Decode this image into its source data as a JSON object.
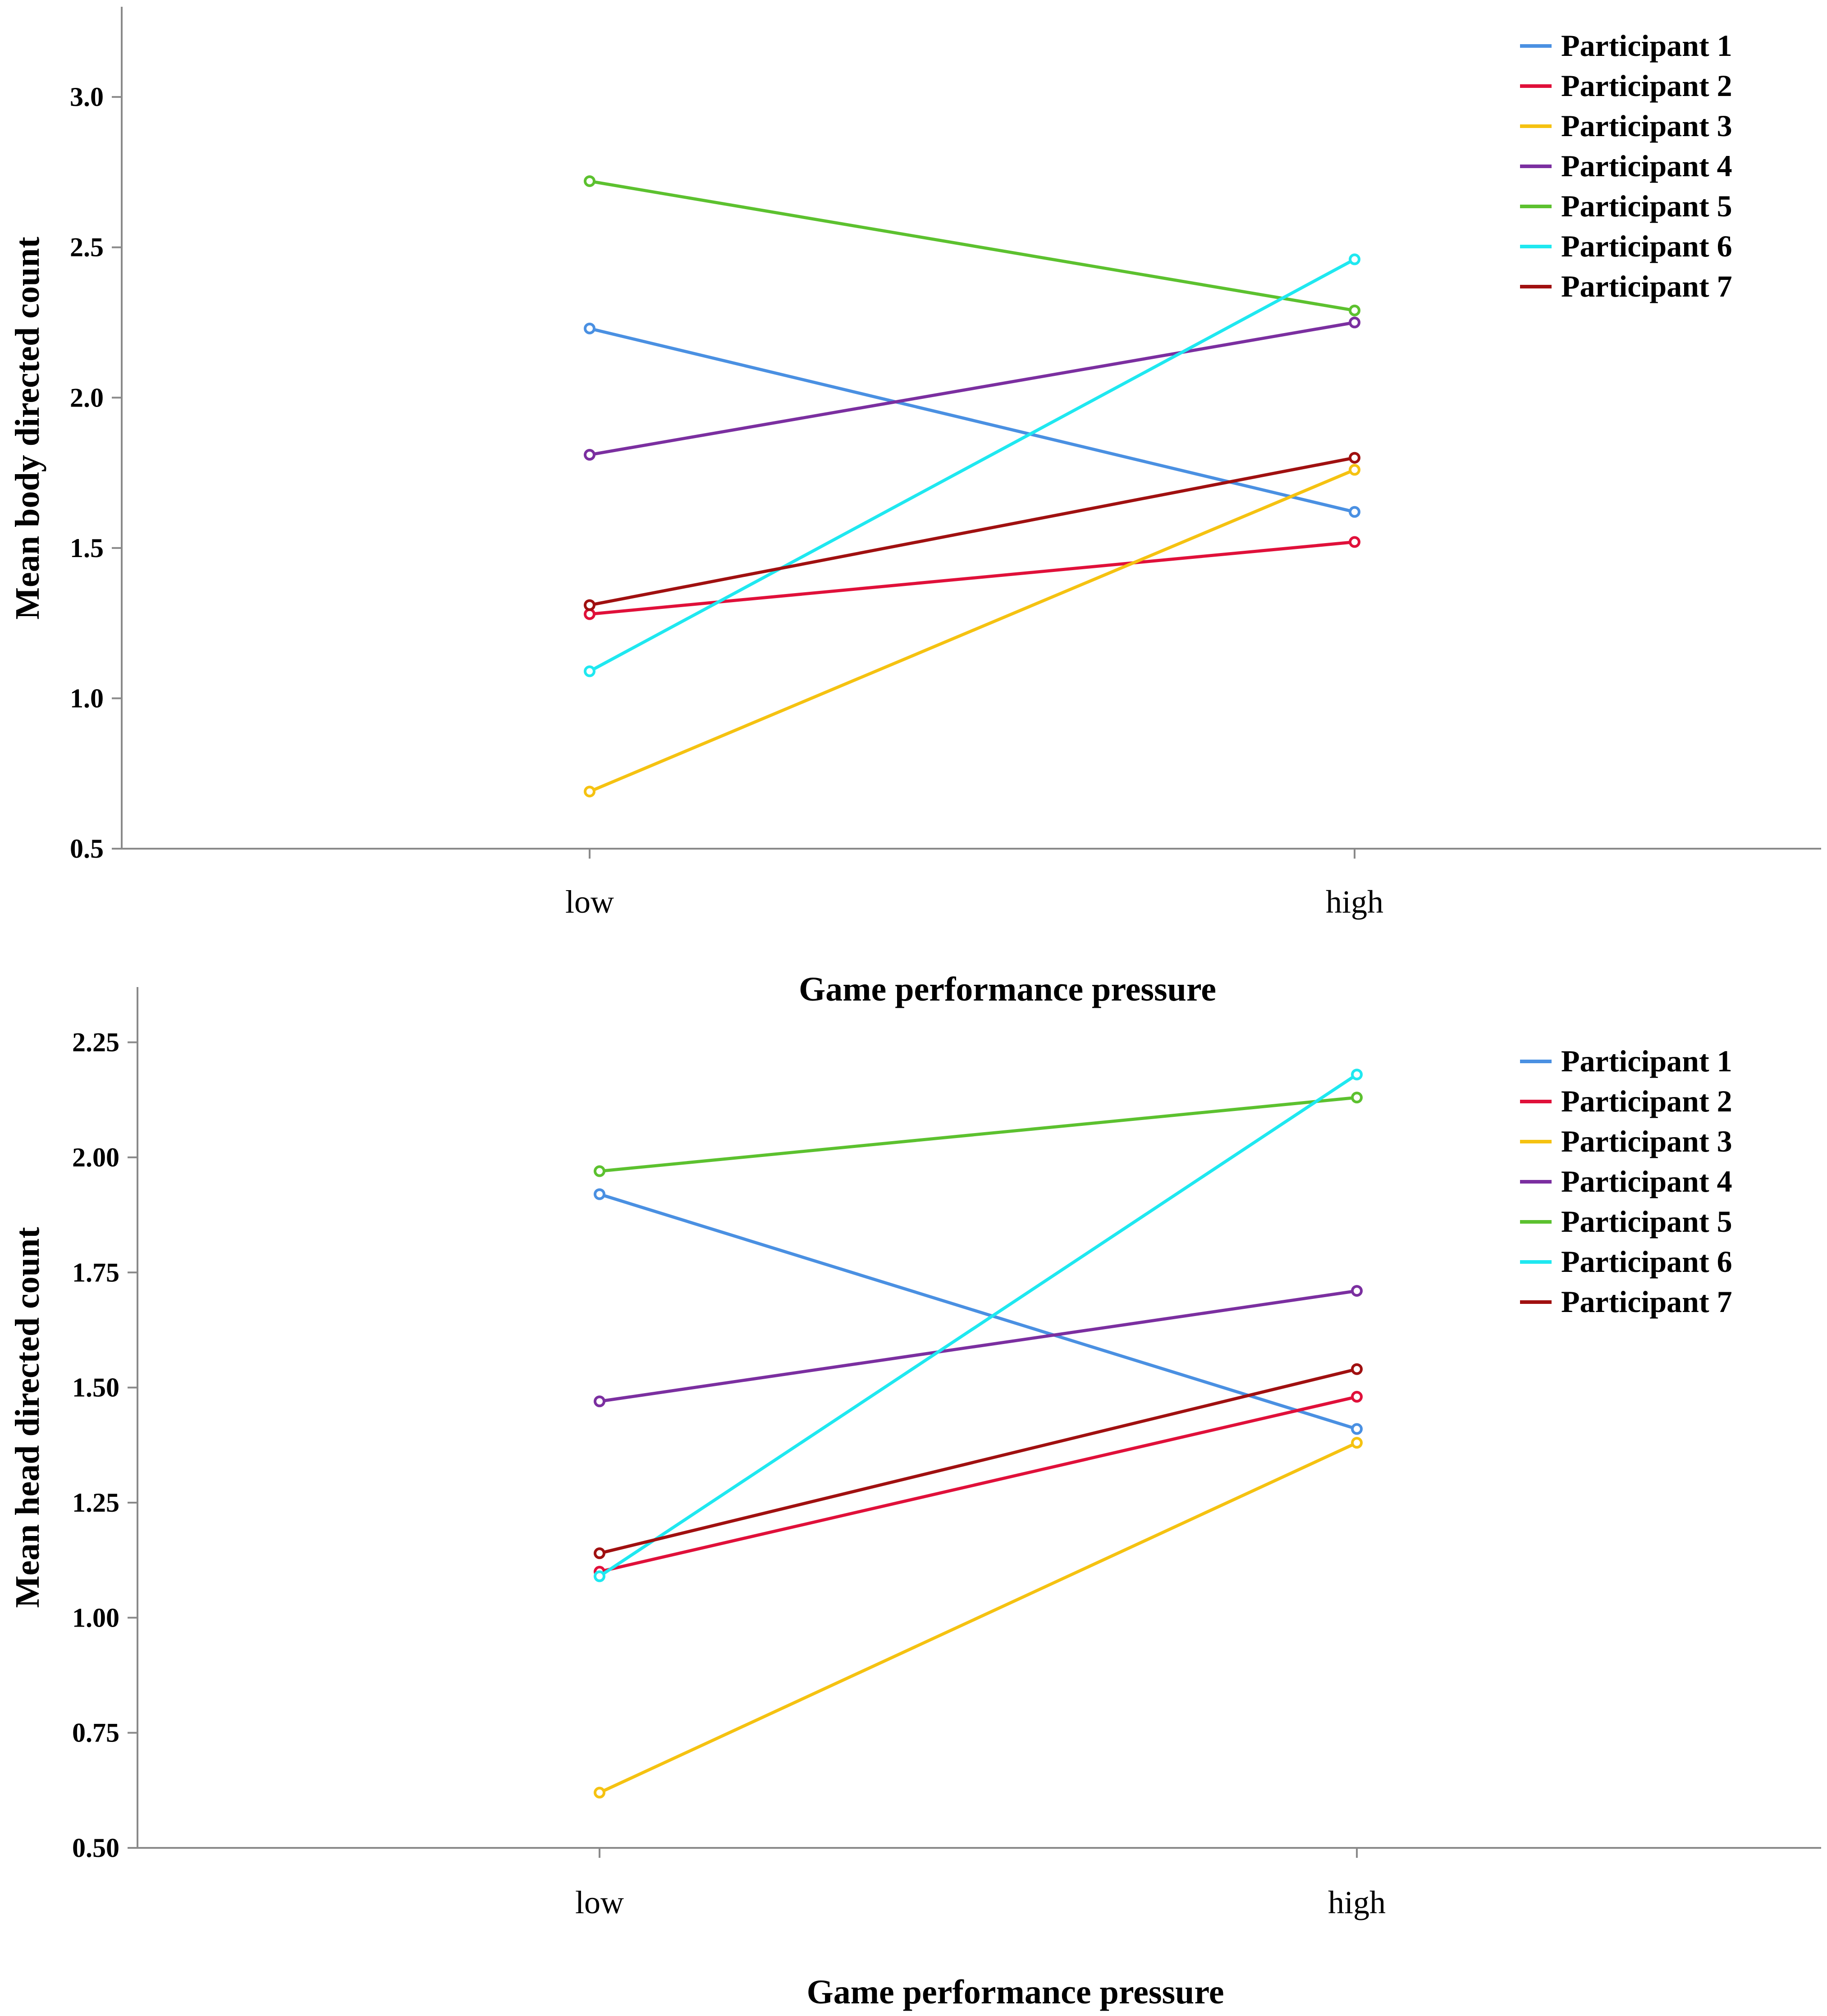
{
  "series_colors": [
    "#4a90e2",
    "#e0103a",
    "#f5c211",
    "#7b2fa0",
    "#5cc12f",
    "#1fe8f0",
    "#a01010"
  ],
  "chart_data": [
    {
      "type": "line",
      "categories": [
        "low",
        "high"
      ],
      "xlabel": "Game performance pressure",
      "ylabel": "Mean body directed count",
      "ylim": [
        0.5,
        3.3
      ],
      "yticks": [
        "0.5",
        "1.0",
        "1.5",
        "2.0",
        "2.5",
        "3.0"
      ],
      "legend_position": "top-right",
      "series": [
        {
          "name": "Participant 1",
          "values": [
            2.23,
            1.62
          ]
        },
        {
          "name": "Participant 2",
          "values": [
            1.28,
            1.52
          ]
        },
        {
          "name": "Participant 3",
          "values": [
            0.69,
            1.76
          ]
        },
        {
          "name": "Participant 4",
          "values": [
            1.81,
            2.25
          ]
        },
        {
          "name": "Participant 5",
          "values": [
            2.72,
            2.29
          ]
        },
        {
          "name": "Participant 6",
          "values": [
            1.09,
            2.46
          ]
        },
        {
          "name": "Participant 7",
          "values": [
            1.31,
            1.8
          ]
        }
      ]
    },
    {
      "type": "line",
      "categories": [
        "low",
        "high"
      ],
      "xlabel": "Game performance pressure",
      "ylabel": "Mean head directed count",
      "ylim": [
        0.5,
        2.37
      ],
      "yticks": [
        "0.50",
        "0.75",
        "1.00",
        "1.25",
        "1.50",
        "1.75",
        "2.00",
        "2.25"
      ],
      "legend_position": "top-right",
      "series": [
        {
          "name": "Participant 1",
          "values": [
            1.92,
            1.41
          ]
        },
        {
          "name": "Participant 2",
          "values": [
            1.1,
            1.48
          ]
        },
        {
          "name": "Participant 3",
          "values": [
            0.62,
            1.38
          ]
        },
        {
          "name": "Participant 4",
          "values": [
            1.47,
            1.71
          ]
        },
        {
          "name": "Participant 5",
          "values": [
            1.97,
            2.13
          ]
        },
        {
          "name": "Participant 6",
          "values": [
            1.09,
            2.18
          ]
        },
        {
          "name": "Participant 7",
          "values": [
            1.14,
            1.54
          ]
        }
      ]
    }
  ]
}
